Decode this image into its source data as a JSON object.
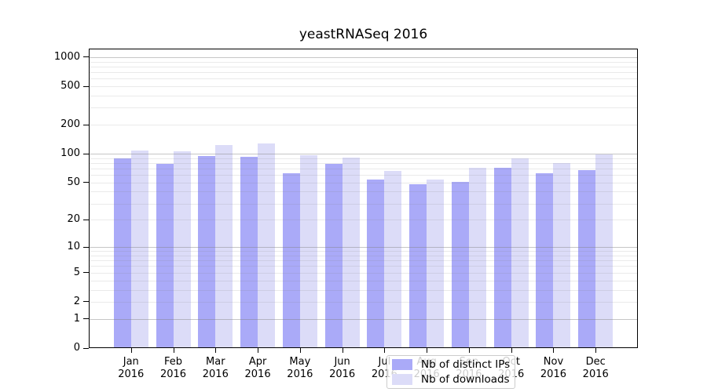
{
  "chart_data": {
    "type": "bar",
    "title": "yeastRNASeq 2016",
    "categories": [
      "Jan",
      "Feb",
      "Mar",
      "Apr",
      "May",
      "Jun",
      "Jul",
      "Aug",
      "Sep",
      "Oct",
      "Nov",
      "Dec"
    ],
    "year_label": "2016",
    "series": [
      {
        "name": "Nb of distinct IPs",
        "color": "#aaaaf8",
        "values": [
          89,
          78,
          94,
          92,
          63,
          78,
          54,
          48,
          51,
          71,
          62,
          67
        ]
      },
      {
        "name": "Nb of downloads",
        "color": "#dcdcf8",
        "values": [
          108,
          105,
          124,
          128,
          97,
          91,
          66,
          54,
          71,
          90,
          80,
          98
        ]
      }
    ],
    "xlabel": "",
    "ylabel": "",
    "yscale": "log10(value+1)",
    "yticks": [
      0,
      1,
      2,
      5,
      10,
      20,
      50,
      100,
      200,
      500,
      1000
    ],
    "ylim": [
      0,
      1240
    ],
    "grid": "horizontal, major and minor",
    "legend_position": "lower center, inside plot",
    "colors": {
      "grid_major": "#c6c6c6",
      "grid_minor": "#e9e9e9",
      "axis": "#000000",
      "background": "#ffffff",
      "legend_face": "rgba(255,255,255,0.8)",
      "legend_edge": "#cccccc"
    }
  }
}
